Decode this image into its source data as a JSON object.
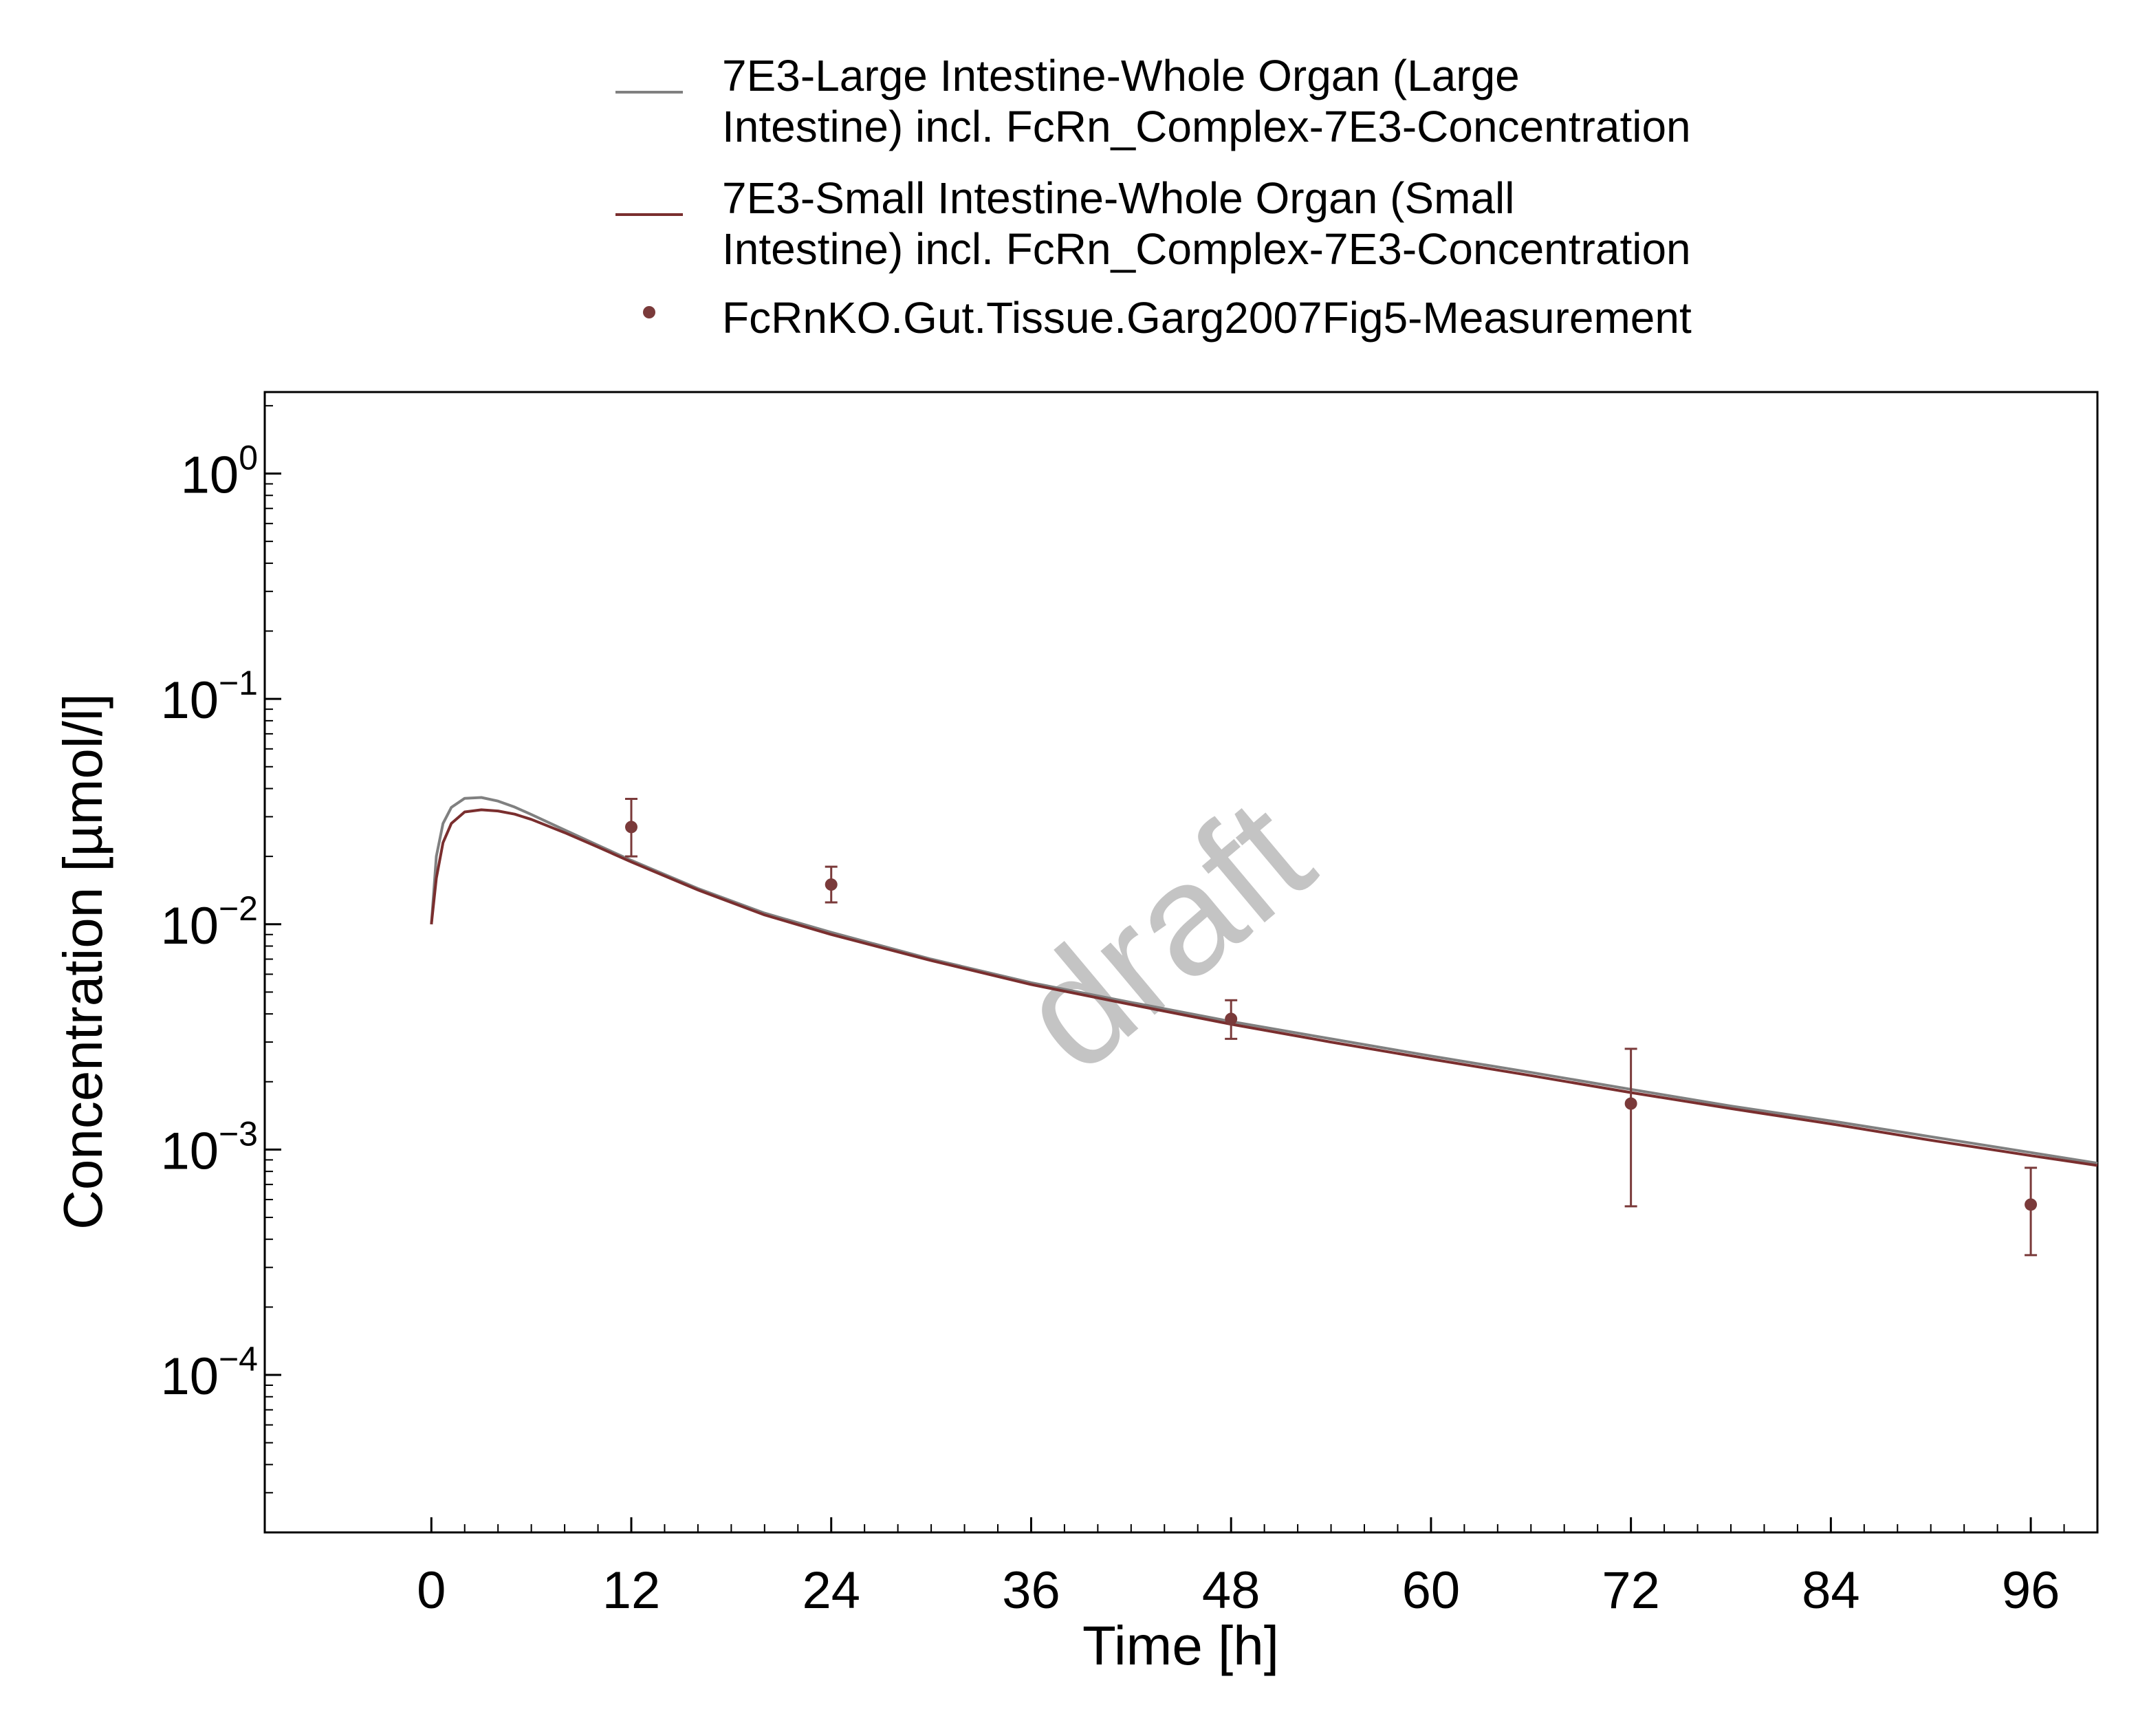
{
  "chart_data": {
    "type": "line",
    "title": "",
    "xlabel": "Time [h]",
    "ylabel": "Concentration [µmol/l]",
    "xlim": [
      -10,
      100
    ],
    "ylim": [
      2e-05,
      2.3
    ],
    "yscale": "log",
    "grid": false,
    "legend_position": "top-center",
    "watermark": "draft",
    "x_ticks": [
      {
        "value": 0,
        "label": "0"
      },
      {
        "value": 12,
        "label": "12"
      },
      {
        "value": 24,
        "label": "24"
      },
      {
        "value": 36,
        "label": "36"
      },
      {
        "value": 48,
        "label": "48"
      },
      {
        "value": 60,
        "label": "60"
      },
      {
        "value": 72,
        "label": "72"
      },
      {
        "value": 84,
        "label": "84"
      },
      {
        "value": 96,
        "label": "96"
      }
    ],
    "y_ticks": [
      {
        "value": 1,
        "base": "10",
        "exp": "0"
      },
      {
        "value": 0.1,
        "base": "10",
        "exp": "−1"
      },
      {
        "value": 0.01,
        "base": "10",
        "exp": "−2"
      },
      {
        "value": 0.001,
        "base": "10",
        "exp": "−3"
      },
      {
        "value": 0.0001,
        "base": "10",
        "exp": "−4"
      }
    ],
    "series": [
      {
        "name": "7E3-Large Intestine-Whole Organ (Large Intestine) incl. FcRn_Complex-7E3-Concentration",
        "legend_lines": [
          "7E3-Large Intestine-Whole Organ (Large",
          "Intestine) incl. FcRn_Complex-7E3-Concentration"
        ],
        "kind": "line",
        "color": "#808080",
        "x": [
          0,
          0.3,
          0.7,
          1.2,
          2,
          3,
          4,
          5,
          6,
          8,
          10,
          12,
          16,
          20,
          24,
          30,
          36,
          42,
          48,
          54,
          60,
          66,
          72,
          78,
          84,
          90,
          96,
          100
        ],
        "y": [
          0.01,
          0.02,
          0.028,
          0.033,
          0.0362,
          0.0365,
          0.0352,
          0.0331,
          0.0307,
          0.0262,
          0.0224,
          0.0192,
          0.0144,
          0.0112,
          0.0092,
          0.007,
          0.0055,
          0.0045,
          0.0037,
          0.0031,
          0.0026,
          0.0022,
          0.00185,
          0.00156,
          0.00134,
          0.00114,
          0.00097,
          0.00087
        ]
      },
      {
        "name": "7E3-Small Intestine-Whole Organ (Small Intestine) incl. FcRn_Complex-7E3-Concentration",
        "legend_lines": [
          "7E3-Small Intestine-Whole Organ (Small",
          "Intestine) incl. FcRn_Complex-7E3-Concentration"
        ],
        "kind": "line",
        "color": "#7a2e2e",
        "x": [
          0,
          0.3,
          0.7,
          1.2,
          2,
          3,
          4,
          5,
          6,
          8,
          10,
          12,
          16,
          20,
          24,
          30,
          36,
          42,
          48,
          54,
          60,
          66,
          72,
          78,
          84,
          90,
          96,
          100
        ],
        "y": [
          0.01,
          0.016,
          0.023,
          0.028,
          0.0315,
          0.0322,
          0.0318,
          0.0308,
          0.0292,
          0.0255,
          0.022,
          0.0189,
          0.0142,
          0.011,
          0.009,
          0.0069,
          0.0054,
          0.0044,
          0.0036,
          0.003,
          0.00252,
          0.00213,
          0.00179,
          0.00152,
          0.0013,
          0.0011,
          0.00094,
          0.00085
        ]
      },
      {
        "name": "FcRnKO.Gut.Tissue.Garg2007Fig5-Measurement",
        "legend_lines": [
          "FcRnKO.Gut.Tissue.Garg2007Fig5-Measurement"
        ],
        "kind": "scatter",
        "color": "#7a3a3a",
        "x": [
          12,
          24,
          48,
          72,
          96
        ],
        "y": [
          0.027,
          0.015,
          0.0038,
          0.0016,
          0.00057
        ],
        "y_error_low": [
          0.02,
          0.0125,
          0.0031,
          0.00056,
          0.00034
        ],
        "y_error_high": [
          0.036,
          0.018,
          0.0046,
          0.0028,
          0.00083
        ]
      }
    ]
  }
}
